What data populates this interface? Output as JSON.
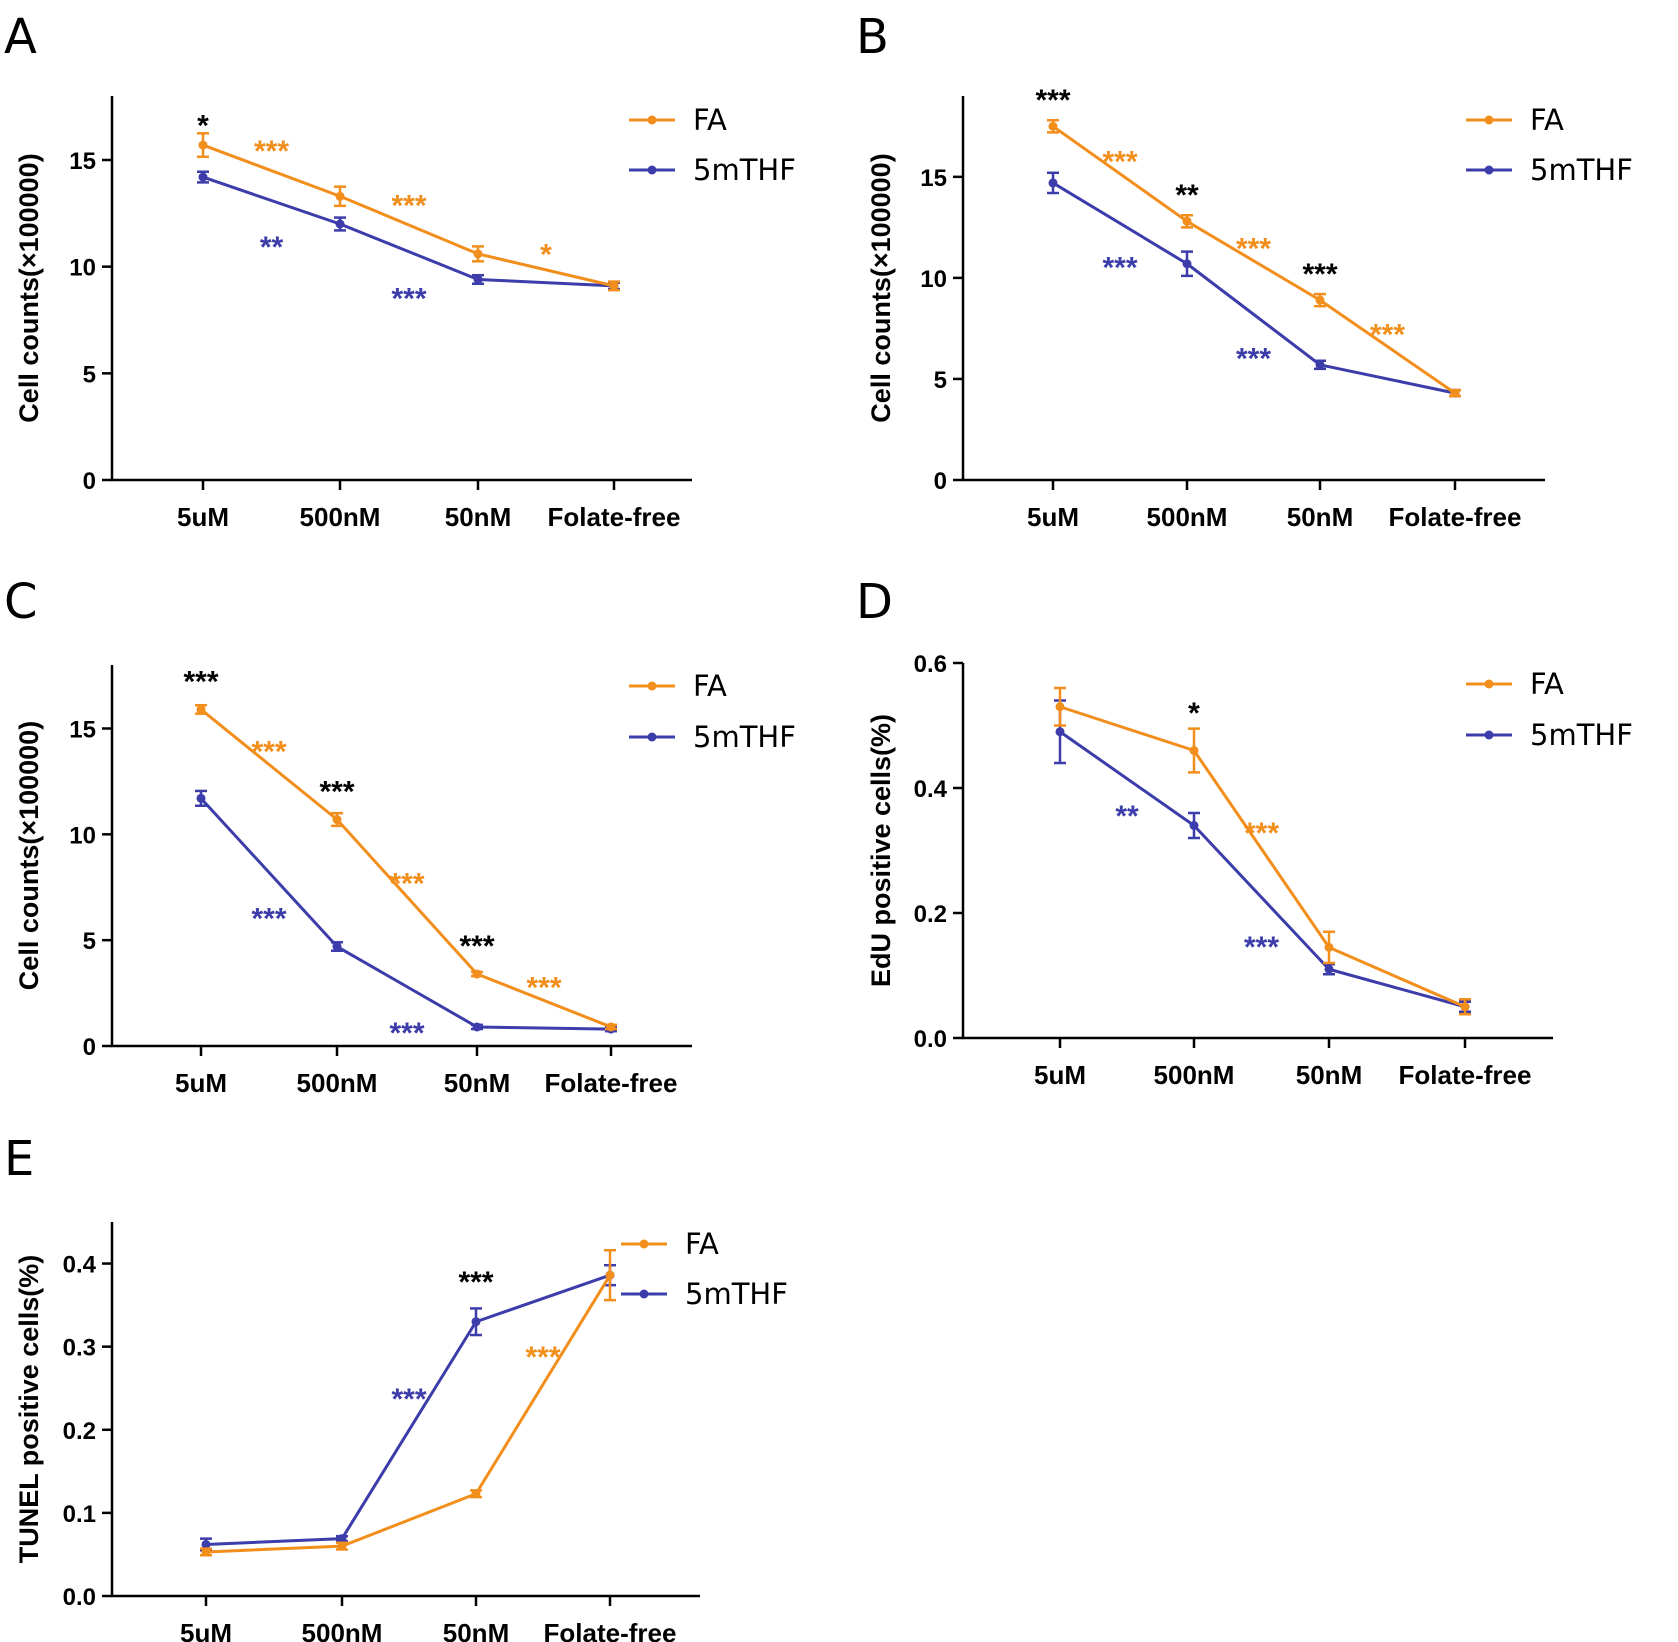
{
  "colors": {
    "FA": "#F28E1C",
    "5mTHF": "#3C3CAA",
    "axis": "#000000",
    "sig_between": "#000000"
  },
  "chart_data": [
    {
      "panel": "A",
      "type": "line",
      "categories": [
        "5uM",
        "500nM",
        "50nM",
        "Folate-free"
      ],
      "ylabel": "Cell counts(×100000)",
      "ylim": [
        0,
        18
      ],
      "yticks": [
        0,
        5,
        10,
        15
      ],
      "series": [
        {
          "name": "FA",
          "color_key": "FA",
          "values": [
            15.7,
            13.3,
            10.6,
            9.1
          ],
          "errors": [
            0.55,
            0.45,
            0.35,
            0.2
          ]
        },
        {
          "name": "5mTHF",
          "color_key": "5mTHF",
          "values": [
            14.2,
            12.0,
            9.4,
            9.1
          ],
          "errors": [
            0.25,
            0.3,
            0.2,
            0.15
          ]
        }
      ],
      "annotations": [
        {
          "text": "*",
          "color_key": "sig_between",
          "at": "5uM",
          "ref": 15.7,
          "offset": 1.2
        },
        {
          "text": "***",
          "color_key": "FA",
          "between": [
            0,
            1
          ],
          "series": "FA",
          "offset": 1.2
        },
        {
          "text": "***",
          "color_key": "FA",
          "between": [
            1,
            2
          ],
          "series": "FA",
          "offset": 1.2
        },
        {
          "text": "*",
          "color_key": "FA",
          "between": [
            2,
            3
          ],
          "series": "FA",
          "offset": 1.0
        },
        {
          "text": "**",
          "color_key": "5mTHF",
          "between": [
            0,
            1
          ],
          "series": "5mTHF",
          "offset": -1.9
        },
        {
          "text": "***",
          "color_key": "5mTHF",
          "between": [
            1,
            2
          ],
          "series": "5mTHF",
          "offset": -1.9
        }
      ]
    },
    {
      "panel": "B",
      "type": "line",
      "categories": [
        "5uM",
        "500nM",
        "50nM",
        "Folate-free"
      ],
      "ylabel": "Cell counts(×100000)",
      "ylim": [
        0,
        19
      ],
      "yticks": [
        0,
        5,
        10,
        15
      ],
      "series": [
        {
          "name": "FA",
          "color_key": "FA",
          "values": [
            17.5,
            12.8,
            8.9,
            4.3
          ],
          "errors": [
            0.3,
            0.3,
            0.3,
            0.15
          ]
        },
        {
          "name": "5mTHF",
          "color_key": "5mTHF",
          "values": [
            14.7,
            10.7,
            5.7,
            4.3
          ],
          "errors": [
            0.5,
            0.6,
            0.2,
            0.15
          ]
        }
      ],
      "annotations": [
        {
          "text": "***",
          "color_key": "sig_between",
          "at": "5uM",
          "ref": 17.5,
          "offset": 1.6
        },
        {
          "text": "**",
          "color_key": "sig_between",
          "at": "500nM",
          "ref": 12.8,
          "offset": 1.6
        },
        {
          "text": "***",
          "color_key": "sig_between",
          "at": "50nM",
          "ref": 8.9,
          "offset": 1.6
        },
        {
          "text": "***",
          "color_key": "FA",
          "between": [
            0,
            1
          ],
          "series": "FA",
          "offset": 0.9
        },
        {
          "text": "***",
          "color_key": "FA",
          "between": [
            1,
            2
          ],
          "series": "FA",
          "offset": 0.9
        },
        {
          "text": "***",
          "color_key": "FA",
          "between": [
            2,
            3
          ],
          "series": "FA",
          "offset": 0.9
        },
        {
          "text": "***",
          "color_key": "5mTHF",
          "between": [
            0,
            1
          ],
          "series": "5mTHF",
          "offset": -1.9
        },
        {
          "text": "***",
          "color_key": "5mTHF",
          "between": [
            1,
            2
          ],
          "series": "5mTHF",
          "offset": -1.9
        }
      ]
    },
    {
      "panel": "C",
      "type": "line",
      "categories": [
        "5uM",
        "500nM",
        "50nM",
        "Folate-free"
      ],
      "ylabel": "Cell counts(×100000)",
      "ylim": [
        0,
        18
      ],
      "yticks": [
        0,
        5,
        10,
        15
      ],
      "series": [
        {
          "name": "FA",
          "color_key": "FA",
          "values": [
            15.9,
            10.7,
            3.4,
            0.9
          ],
          "errors": [
            0.2,
            0.3,
            0.1,
            0.1
          ]
        },
        {
          "name": "5mTHF",
          "color_key": "5mTHF",
          "values": [
            11.7,
            4.7,
            0.9,
            0.8
          ],
          "errors": [
            0.35,
            0.2,
            0.1,
            0.1
          ]
        }
      ],
      "annotations": [
        {
          "text": "***",
          "color_key": "sig_between",
          "at": "5uM",
          "ref": 15.9,
          "offset": 1.6
        },
        {
          "text": "***",
          "color_key": "sig_between",
          "at": "500nM",
          "ref": 10.7,
          "offset": 1.6
        },
        {
          "text": "***",
          "color_key": "sig_between",
          "at": "50nM",
          "ref": 3.4,
          "offset": 1.6
        },
        {
          "text": "***",
          "color_key": "FA",
          "between": [
            0,
            1
          ],
          "series": "FA",
          "offset": 0.9
        },
        {
          "text": "***",
          "color_key": "FA",
          "between": [
            1,
            2
          ],
          "series": "FA",
          "offset": 0.9
        },
        {
          "text": "***",
          "color_key": "FA",
          "between": [
            2,
            3
          ],
          "series": "FA",
          "offset": 0.9
        },
        {
          "text": "***",
          "color_key": "5mTHF",
          "between": [
            0,
            1
          ],
          "series": "5mTHF",
          "offset": -1.9
        },
        {
          "text": "***",
          "color_key": "5mTHF",
          "between": [
            1,
            2
          ],
          "series": "5mTHF",
          "offset": -1.9
        }
      ]
    },
    {
      "panel": "D",
      "type": "line",
      "categories": [
        "5uM",
        "500nM",
        "50nM",
        "Folate-free"
      ],
      "ylabel": "EdU positive cells(%)",
      "ylim": [
        0,
        0.6
      ],
      "yticks": [
        0.0,
        0.2,
        0.4,
        0.6
      ],
      "tick_decimals": 1,
      "series": [
        {
          "name": "FA",
          "color_key": "FA",
          "values": [
            0.53,
            0.46,
            0.145,
            0.05
          ],
          "errors": [
            0.03,
            0.035,
            0.025,
            0.012
          ]
        },
        {
          "name": "5mTHF",
          "color_key": "5mTHF",
          "values": [
            0.49,
            0.34,
            0.11,
            0.05
          ],
          "errors": [
            0.05,
            0.02,
            0.008,
            0.008
          ]
        }
      ],
      "annotations": [
        {
          "text": "*",
          "color_key": "sig_between",
          "at": "500nM",
          "ref": 0.46,
          "offset": 0.07
        },
        {
          "text": "***",
          "color_key": "FA",
          "between": [
            1,
            2
          ],
          "series": "FA",
          "offset": 0.035
        },
        {
          "text": "**",
          "color_key": "5mTHF",
          "between": [
            0,
            1
          ],
          "series": "5mTHF",
          "offset": -0.05
        },
        {
          "text": "***",
          "color_key": "5mTHF",
          "between": [
            1,
            2
          ],
          "series": "5mTHF",
          "offset": -0.07
        }
      ]
    },
    {
      "panel": "E",
      "type": "line",
      "categories": [
        "5uM",
        "500nM",
        "50nM",
        "Folate-free"
      ],
      "ylabel": "TUNEL positive cells(%)",
      "ylim": [
        0,
        0.45
      ],
      "yticks": [
        0.0,
        0.1,
        0.2,
        0.3,
        0.4
      ],
      "tick_decimals": 1,
      "series": [
        {
          "name": "FA",
          "color_key": "FA",
          "values": [
            0.053,
            0.06,
            0.123,
            0.386
          ],
          "errors": [
            0.004,
            0.004,
            0.004,
            0.03
          ]
        },
        {
          "name": "5mTHF",
          "color_key": "5mTHF",
          "values": [
            0.062,
            0.069,
            0.33,
            0.386
          ],
          "errors": [
            0.007,
            0.003,
            0.016,
            0.012
          ]
        }
      ],
      "annotations": [
        {
          "text": "***",
          "color_key": "sig_between",
          "at": "50nM",
          "ref": 0.33,
          "offset": 0.055
        },
        {
          "text": "***",
          "color_key": "5mTHF",
          "between": [
            1,
            2
          ],
          "series": "5mTHF",
          "offset": 0.045
        },
        {
          "text": "***",
          "color_key": "FA",
          "between": [
            2,
            3
          ],
          "series": "FA",
          "offset": 0.04
        }
      ]
    }
  ]
}
